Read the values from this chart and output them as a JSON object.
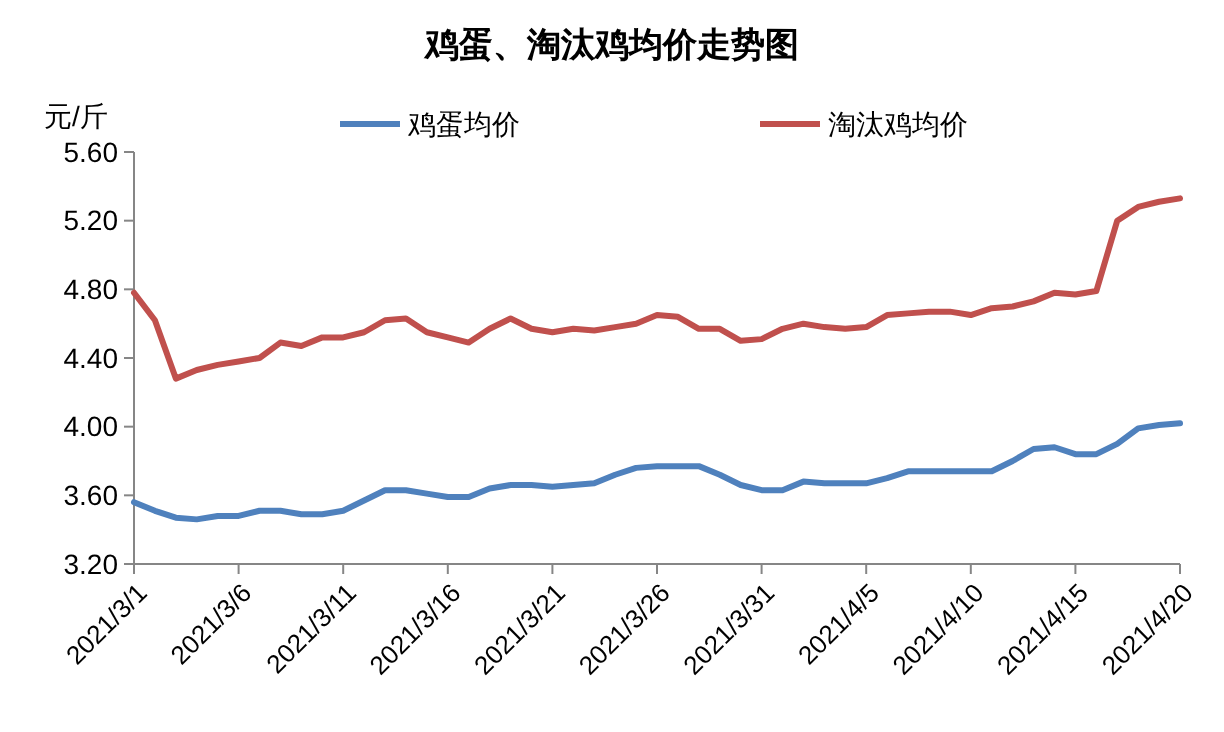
{
  "chart_data": {
    "type": "line",
    "title": "鸡蛋、淘汰鸡均价走势图",
    "ylabel": "元/斤",
    "x": [
      "2021-03-01",
      "2021-03-02",
      "2021-03-03",
      "2021-03-04",
      "2021-03-05",
      "2021-03-06",
      "2021-03-07",
      "2021-03-08",
      "2021-03-09",
      "2021-03-10",
      "2021-03-11",
      "2021-03-12",
      "2021-03-13",
      "2021-03-14",
      "2021-03-15",
      "2021-03-16",
      "2021-03-17",
      "2021-03-18",
      "2021-03-19",
      "2021-03-20",
      "2021-03-21",
      "2021-03-22",
      "2021-03-23",
      "2021-03-24",
      "2021-03-25",
      "2021-03-26",
      "2021-03-27",
      "2021-03-28",
      "2021-03-29",
      "2021-03-30",
      "2021-03-31",
      "2021-04-01",
      "2021-04-02",
      "2021-04-03",
      "2021-04-04",
      "2021-04-05",
      "2021-04-06",
      "2021-04-07",
      "2021-04-08",
      "2021-04-09",
      "2021-04-10",
      "2021-04-11",
      "2021-04-12",
      "2021-04-13",
      "2021-04-14",
      "2021-04-15",
      "2021-04-16",
      "2021-04-17",
      "2021-04-18",
      "2021-04-19",
      "2021-04-20"
    ],
    "series": [
      {
        "name": "鸡蛋均价",
        "color": "#4f81bd",
        "values": [
          3.56,
          3.51,
          3.47,
          3.46,
          3.48,
          3.48,
          3.51,
          3.51,
          3.49,
          3.49,
          3.51,
          3.57,
          3.63,
          3.63,
          3.61,
          3.59,
          3.59,
          3.64,
          3.66,
          3.66,
          3.65,
          3.66,
          3.67,
          3.72,
          3.76,
          3.77,
          3.77,
          3.77,
          3.72,
          3.66,
          3.63,
          3.63,
          3.68,
          3.67,
          3.67,
          3.67,
          3.7,
          3.74,
          3.74,
          3.74,
          3.74,
          3.74,
          3.8,
          3.87,
          3.88,
          3.84,
          3.84,
          3.9,
          3.99,
          4.01,
          4.02
        ]
      },
      {
        "name": "淘汰鸡均价",
        "color": "#c0504d",
        "values": [
          4.78,
          4.62,
          4.28,
          4.33,
          4.36,
          4.38,
          4.4,
          4.49,
          4.47,
          4.52,
          4.52,
          4.55,
          4.62,
          4.63,
          4.55,
          4.52,
          4.49,
          4.57,
          4.63,
          4.57,
          4.55,
          4.57,
          4.56,
          4.58,
          4.6,
          4.65,
          4.64,
          4.57,
          4.57,
          4.5,
          4.51,
          4.57,
          4.6,
          4.58,
          4.57,
          4.58,
          4.65,
          4.66,
          4.67,
          4.67,
          4.65,
          4.69,
          4.7,
          4.73,
          4.78,
          4.77,
          4.79,
          5.2,
          5.28,
          5.31,
          5.33
        ]
      }
    ],
    "xlim": [
      "2021-03-01",
      "2021-04-20"
    ],
    "xticks": [
      {
        "value": "2021-03-01",
        "label": "2021/3/1"
      },
      {
        "value": "2021-03-06",
        "label": "2021/3/6"
      },
      {
        "value": "2021-03-11",
        "label": "2021/3/11"
      },
      {
        "value": "2021-03-16",
        "label": "2021/3/16"
      },
      {
        "value": "2021-03-21",
        "label": "2021/3/21"
      },
      {
        "value": "2021-03-26",
        "label": "2021/3/26"
      },
      {
        "value": "2021-03-31",
        "label": "2021/3/31"
      },
      {
        "value": "2021-04-05",
        "label": "2021/4/5"
      },
      {
        "value": "2021-04-10",
        "label": "2021/4/10"
      },
      {
        "value": "2021-04-15",
        "label": "2021/4/15"
      },
      {
        "value": "2021-04-20",
        "label": "2021/4/20"
      }
    ],
    "ylim": [
      3.2,
      5.6
    ],
    "yticks": [
      {
        "value": 3.2,
        "label": "3.20"
      },
      {
        "value": 3.6,
        "label": "3.60"
      },
      {
        "value": 4.0,
        "label": "4.00"
      },
      {
        "value": 4.4,
        "label": "4.40"
      },
      {
        "value": 4.8,
        "label": "4.80"
      },
      {
        "value": 5.2,
        "label": "5.20"
      },
      {
        "value": 5.6,
        "label": "5.60"
      }
    ],
    "grid": false,
    "legend": "top",
    "marker": "none",
    "line_style": "solid"
  }
}
